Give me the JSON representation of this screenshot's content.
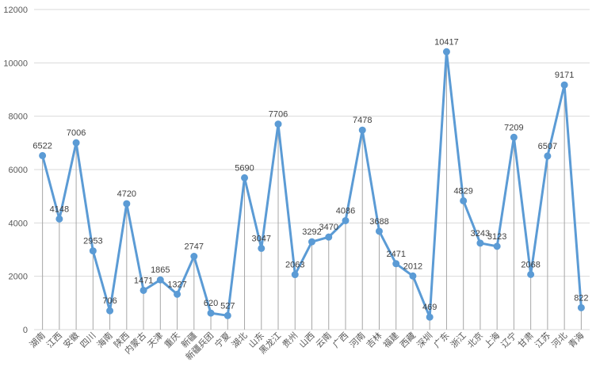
{
  "chart_data": {
    "type": "line",
    "title": "",
    "xlabel": "",
    "ylabel": "",
    "ylim": [
      0,
      12000
    ],
    "yticks": [
      0,
      2000,
      4000,
      6000,
      8000,
      10000,
      12000
    ],
    "grid": "horizontal",
    "drop_lines": true,
    "series_color": "#5b9bd5",
    "categories": [
      "湖南",
      "江西",
      "安徽",
      "四川",
      "海南",
      "陕西",
      "内蒙古",
      "天津",
      "重庆",
      "新疆",
      "新疆兵团",
      "宁夏",
      "湖北",
      "山东",
      "黑龙江",
      "贵州",
      "山西",
      "云南",
      "广西",
      "河南",
      "吉林",
      "福建",
      "西藏",
      "深圳",
      "广东",
      "浙江",
      "北京",
      "上海",
      "辽宁",
      "甘肃",
      "江苏",
      "河北",
      "青海"
    ],
    "series": [
      {
        "values": [
          6522,
          4148,
          7006,
          2953,
          706,
          4720,
          1471,
          1865,
          1327,
          2747,
          620,
          527,
          5690,
          3047,
          7706,
          2063,
          3292,
          3470,
          4086,
          7478,
          3688,
          2471,
          2012,
          469,
          10417,
          4829,
          3243,
          3123,
          7209,
          2068,
          6507,
          9171,
          822
        ]
      }
    ]
  }
}
